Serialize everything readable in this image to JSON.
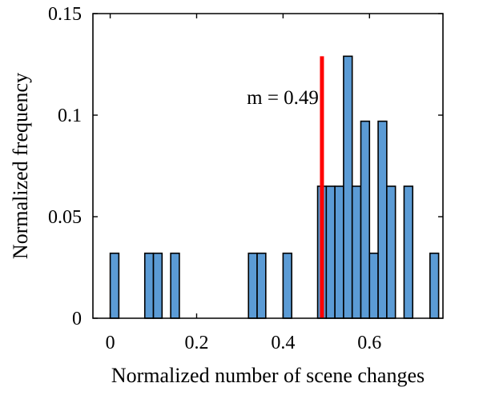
{
  "chart_data": {
    "type": "bar",
    "xlabel": "Normalized number of scene changes",
    "ylabel": "Normalized frequency",
    "xlim": [
      -0.04,
      0.77
    ],
    "ylim": [
      0,
      0.15
    ],
    "xticks": [
      0,
      0.2,
      0.4,
      0.6
    ],
    "xtick_labels": [
      "0",
      "0.2",
      "0.4",
      "0.6"
    ],
    "yticks": [
      0,
      0.05,
      0.1,
      0.15
    ],
    "ytick_labels": [
      "0",
      "0.05",
      "0.1",
      "0.15"
    ],
    "bin_width": 0.02,
    "bars": [
      {
        "x0": 0.0,
        "value": 0.032
      },
      {
        "x0": 0.08,
        "value": 0.032
      },
      {
        "x0": 0.1,
        "value": 0.032
      },
      {
        "x0": 0.14,
        "value": 0.032
      },
      {
        "x0": 0.32,
        "value": 0.032
      },
      {
        "x0": 0.34,
        "value": 0.032
      },
      {
        "x0": 0.4,
        "value": 0.032
      },
      {
        "x0": 0.48,
        "value": 0.065
      },
      {
        "x0": 0.5,
        "value": 0.065
      },
      {
        "x0": 0.52,
        "value": 0.065
      },
      {
        "x0": 0.54,
        "value": 0.129
      },
      {
        "x0": 0.56,
        "value": 0.065
      },
      {
        "x0": 0.58,
        "value": 0.097
      },
      {
        "x0": 0.6,
        "value": 0.032
      },
      {
        "x0": 0.62,
        "value": 0.097
      },
      {
        "x0": 0.64,
        "value": 0.065
      },
      {
        "x0": 0.68,
        "value": 0.065
      },
      {
        "x0": 0.74,
        "value": 0.032
      }
    ],
    "mean_line": {
      "x": 0.49,
      "top": 0.129,
      "color": "#ff0000"
    },
    "annotation": "m = 0.49",
    "bar_color": "#5b9bd5",
    "grid": false,
    "box": true
  }
}
